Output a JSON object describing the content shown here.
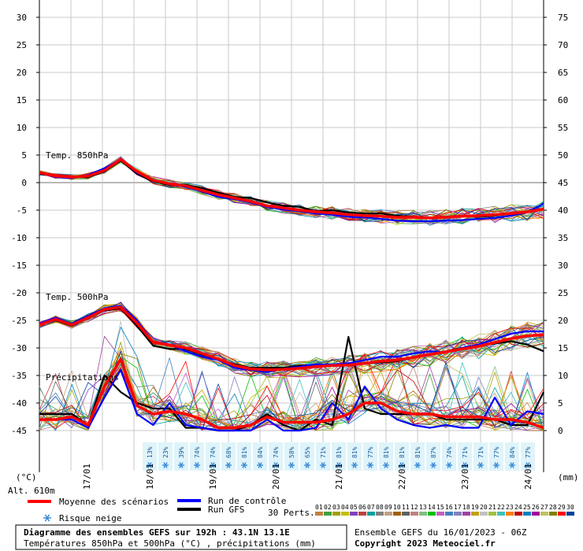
{
  "chart_data": {
    "type": "line",
    "left_axis": {
      "unit_label": "(°C)",
      "ticks": [
        30,
        25,
        20,
        15,
        10,
        5,
        0,
        -5,
        -10,
        -15,
        -20,
        -25,
        -30,
        -35,
        -40,
        -45
      ],
      "ylim": [
        -45,
        30
      ]
    },
    "right_axis": {
      "unit_label": "(mm)",
      "ticks": [
        75,
        70,
        65,
        60,
        55,
        50,
        45,
        40,
        35,
        30,
        25,
        20,
        15,
        10,
        5,
        0
      ],
      "ylim": [
        0,
        75
      ]
    },
    "x_axis": {
      "date_labels": [
        "17/01",
        "18/01",
        "19/01",
        "20/01",
        "21/01",
        "22/01",
        "23/01",
        "24/01"
      ],
      "x_hours": [
        0,
        192
      ],
      "grid": true
    },
    "altitude_label": "Alt. 610m",
    "section_labels": {
      "t850": "Temp. 850hPa",
      "t500": "Temp. 500hPa",
      "precip": "Précipitations"
    },
    "series": [
      {
        "name": "Moyenne des scénarios",
        "color": "#ff0000",
        "t850": [
          1.8,
          1.2,
          1.0,
          1.2,
          2.2,
          4.2,
          2.0,
          0.4,
          -0.2,
          -0.6,
          -1.4,
          -2.2,
          -2.8,
          -3.4,
          -4.2,
          -4.6,
          -5.0,
          -5.3,
          -5.5,
          -5.8,
          -6.0,
          -6.1,
          -6.3,
          -6.3,
          -6.4,
          -6.3,
          -6.1,
          -6.0,
          -5.8,
          -5.6,
          -5.3,
          -4.8
        ],
        "t500": [
          -25.8,
          -24.8,
          -25.8,
          -24.5,
          -23.0,
          -22.6,
          -25.5,
          -29.0,
          -29.5,
          -30.0,
          -31.0,
          -32.0,
          -33.2,
          -33.8,
          -34.0,
          -33.9,
          -33.7,
          -33.4,
          -33.2,
          -33.1,
          -32.8,
          -32.4,
          -32.2,
          -31.7,
          -31.2,
          -30.7,
          -30.2,
          -29.7,
          -29.0,
          -28.3,
          -27.8,
          -27.6
        ],
        "precip_mm": [
          2.0,
          2.0,
          2.5,
          1.0,
          8.0,
          13.0,
          4.5,
          3.0,
          3.5,
          3.0,
          2.0,
          0.5,
          0.5,
          1.0,
          2.5,
          1.5,
          1.5,
          1.5,
          2.0,
          3.0,
          5.0,
          5.0,
          3.5,
          3.0,
          3.0,
          2.5,
          2.5,
          2.5,
          2.0,
          2.0,
          1.5,
          0.5
        ]
      },
      {
        "name": "Run de contrôle",
        "color": "#0000ff",
        "t850": [
          1.8,
          1.0,
          0.8,
          1.4,
          2.6,
          4.2,
          1.8,
          0.4,
          -0.2,
          -0.8,
          -1.6,
          -2.6,
          -3.0,
          -3.6,
          -4.4,
          -4.9,
          -5.2,
          -5.6,
          -5.8,
          -6.2,
          -6.3,
          -6.6,
          -6.9,
          -7.0,
          -7.0,
          -6.9,
          -6.8,
          -6.6,
          -6.4,
          -6.0,
          -5.4,
          -3.8
        ],
        "t500": [
          -25.6,
          -24.6,
          -25.6,
          -24.2,
          -22.8,
          -22.4,
          -25.0,
          -29.0,
          -29.4,
          -30.6,
          -31.6,
          -32.2,
          -33.6,
          -34.0,
          -34.4,
          -33.8,
          -33.4,
          -33.0,
          -33.0,
          -32.8,
          -32.2,
          -31.6,
          -31.6,
          -31.0,
          -30.6,
          -30.8,
          -30.0,
          -29.4,
          -28.4,
          -27.4,
          -27.0,
          -27.0
        ],
        "precip_mm": [
          2.0,
          2.0,
          2.0,
          0.5,
          6.0,
          11.0,
          3.0,
          1.0,
          5.0,
          1.0,
          0.5,
          0.0,
          0.0,
          0.0,
          2.0,
          0.0,
          0.0,
          0.5,
          5.0,
          2.0,
          8.0,
          4.0,
          2.0,
          1.0,
          0.5,
          1.0,
          0.5,
          0.5,
          6.0,
          1.0,
          3.5,
          3.0
        ]
      },
      {
        "name": "Run GFS",
        "color": "#000000",
        "t850": [
          1.6,
          1.2,
          1.0,
          1.0,
          2.0,
          4.0,
          1.6,
          0.2,
          -0.4,
          -0.4,
          -1.0,
          -1.8,
          -2.6,
          -2.8,
          -3.6,
          -4.2,
          -4.4,
          -5.2,
          -5.0,
          -5.4,
          -5.6,
          -5.6,
          -6.0,
          -6.2,
          -6.4,
          -6.2,
          -6.0,
          -6.2,
          -6.0,
          -5.6,
          -5.2,
          -4.8
        ],
        "t500": [
          -25.6,
          -25.0,
          -26.0,
          -24.6,
          -23.2,
          -22.8,
          -26.0,
          -29.6,
          -30.2,
          -30.2,
          -31.2,
          -32.0,
          -33.0,
          -33.6,
          -33.6,
          -33.6,
          -33.2,
          -33.2,
          -33.0,
          -33.2,
          -32.8,
          -32.6,
          -32.4,
          -31.8,
          -31.2,
          -30.6,
          -30.0,
          -29.6,
          -29.2,
          -28.8,
          -29.4,
          -30.6
        ],
        "precip_mm": [
          3.0,
          3.0,
          3.0,
          1.0,
          10.0,
          7.0,
          5.0,
          4.0,
          4.0,
          0.5,
          0.5,
          0.0,
          0.0,
          1.0,
          3.0,
          1.0,
          0.0,
          2.0,
          1.0,
          17.0,
          4.0,
          3.0,
          3.0,
          3.0,
          3.0,
          2.0,
          2.0,
          2.0,
          2.0,
          1.0,
          1.0,
          7.0
        ]
      }
    ],
    "perturbation_colors": [
      "#c08040",
      "#40a040",
      "#a0a000",
      "#c0c000",
      "#8040c0",
      "#c04040",
      "#00a0a0",
      "#808080",
      "#c0a080",
      "#a06000",
      "#606060",
      "#c08080",
      "#80c080",
      "#00c000",
      "#c060c0",
      "#4080c0",
      "#8080c0",
      "#a040a0",
      "#c0a000",
      "#c0c0c0",
      "#a0c040",
      "#40c0c0",
      "#ff8000",
      "#c00000",
      "#0080c0",
      "#a000a0",
      "#c0c060",
      "#808000",
      "#ff0000",
      "#0040a0"
    ],
    "snow_risk_pct": [
      "13%",
      "23%",
      "39%",
      "74%",
      "74%",
      "68%",
      "81%",
      "84%",
      "74%",
      "58%",
      "65%",
      "71%",
      "81%",
      "81%",
      "77%",
      "81%",
      "81%",
      "81%",
      "87%",
      "74%",
      "71%",
      "71%",
      "77%",
      "84%",
      "77%"
    ]
  },
  "legend": {
    "mean": "Moyenne des scénarios",
    "control": "Run de contrôle",
    "gfs": "Run GFS",
    "perts": "30 Perts.",
    "snow": "Risque neige",
    "pert_numbers": [
      "01",
      "02",
      "03",
      "04",
      "05",
      "06",
      "07",
      "08",
      "09",
      "10",
      "11",
      "12",
      "13",
      "14",
      "15",
      "16",
      "17",
      "18",
      "19",
      "20",
      "21",
      "22",
      "23",
      "24",
      "25",
      "26",
      "27",
      "28",
      "29",
      "30"
    ]
  },
  "info": {
    "title": "Diagramme des ensembles GEFS sur 192h : 43.1N 13.1E",
    "subtitle": "Températures 850hPa et 500hPa (°C) , précipitations (mm)",
    "ensemble": "Ensemble GEFS du 16/01/2023 - 06Z",
    "copyright": "Copyright 2023 Meteociel.fr"
  }
}
